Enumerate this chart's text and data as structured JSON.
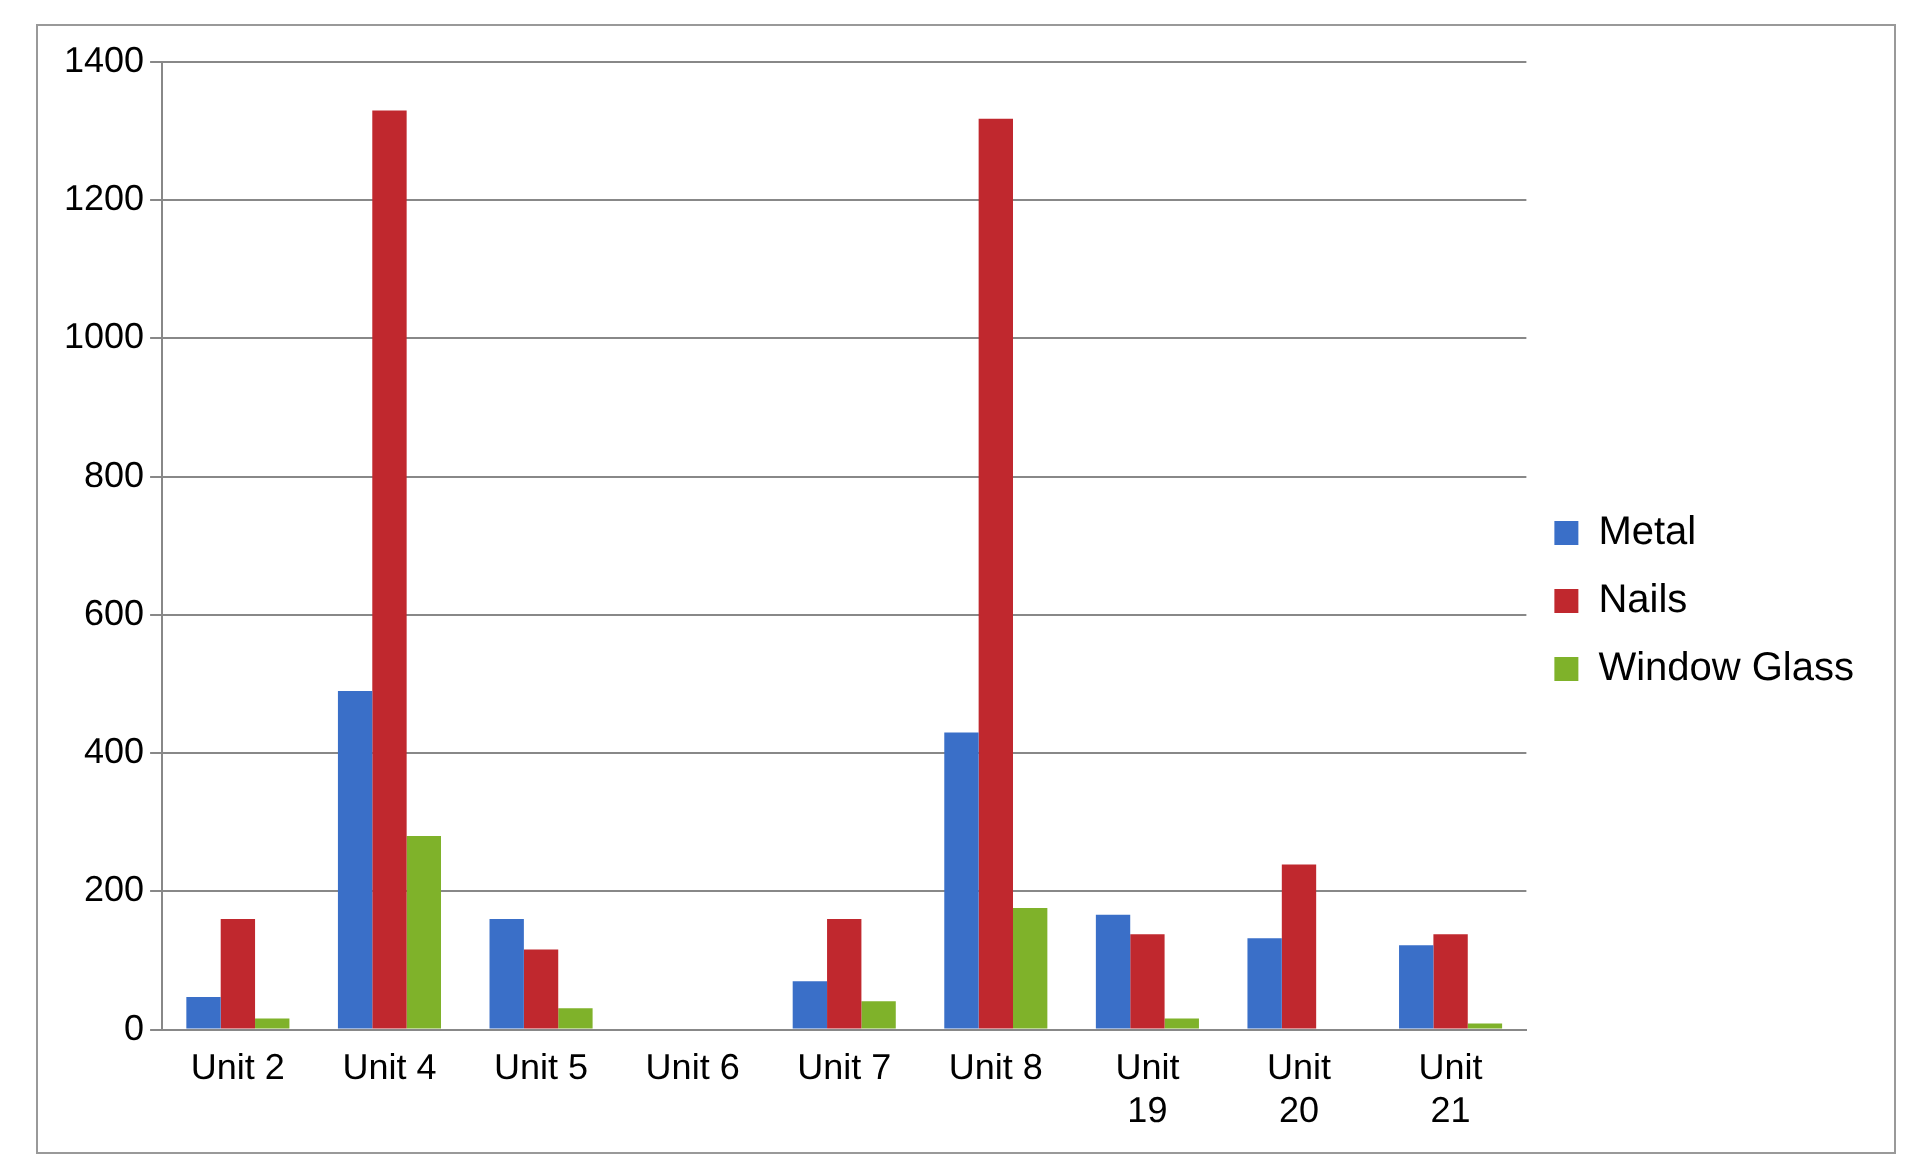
{
  "chart_data": {
    "type": "bar",
    "categories": [
      "Unit 2",
      "Unit 4",
      "Unit 5",
      "Unit 6",
      "Unit 7",
      "Unit 8",
      "Unit 19",
      "Unit 20",
      "Unit 21"
    ],
    "series": [
      {
        "name": "Metal",
        "color": "#3a6fc8",
        "values": [
          47,
          490,
          160,
          0,
          70,
          430,
          166,
          132,
          122
        ]
      },
      {
        "name": "Nails",
        "color": "#c0282e",
        "values": [
          160,
          1330,
          116,
          0,
          160,
          1318,
          138,
          239,
          138
        ]
      },
      {
        "name": "Window Glass",
        "color": "#7fb22a",
        "values": [
          16,
          280,
          31,
          0,
          41,
          176,
          16,
          0,
          9
        ]
      }
    ],
    "ylim": [
      0,
      1400
    ],
    "yticks": [
      0,
      200,
      400,
      600,
      800,
      1000,
      1200,
      1400
    ],
    "grid": "y",
    "legend": "right"
  }
}
